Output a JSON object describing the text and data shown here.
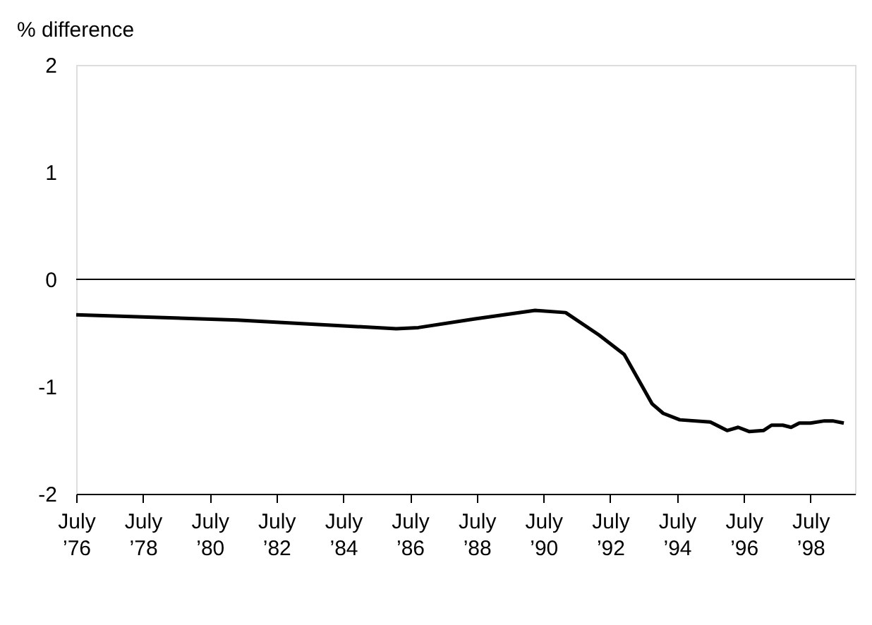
{
  "chart_data": {
    "type": "line",
    "ylabel": "% difference",
    "x": [
      "1976-07",
      "1981-05",
      "1986-02",
      "1986-10",
      "1988-06",
      "1990-04",
      "1991-03",
      "1992-03",
      "1992-12",
      "1993-10",
      "1994-02",
      "1994-08",
      "1995-07",
      "1996-01",
      "1996-05",
      "1996-09",
      "1997-02",
      "1997-05",
      "1997-09",
      "1997-12",
      "1998-03",
      "1998-07",
      "1998-12",
      "1999-03",
      "1999-07"
    ],
    "series": [
      {
        "color": "#000000",
        "values": [
          -0.33,
          -0.38,
          -0.46,
          -0.45,
          -0.37,
          -0.29,
          -0.31,
          -0.52,
          -0.7,
          -1.16,
          -1.25,
          -1.31,
          -1.33,
          -1.41,
          -1.38,
          -1.42,
          -1.41,
          -1.36,
          -1.36,
          -1.38,
          -1.34,
          -1.34,
          -1.32,
          -1.32,
          -1.34
        ]
      }
    ],
    "xlim": [
      "1976-07",
      "1999-11"
    ],
    "xticks": [
      {
        "value": "1976-07",
        "label": "July\n’76"
      },
      {
        "value": "1978-07",
        "label": "July\n’78"
      },
      {
        "value": "1980-07",
        "label": "July\n’80"
      },
      {
        "value": "1982-07",
        "label": "July\n’82"
      },
      {
        "value": "1984-07",
        "label": "July\n’84"
      },
      {
        "value": "1986-07",
        "label": "July\n’86"
      },
      {
        "value": "1988-07",
        "label": "July\n’88"
      },
      {
        "value": "1990-07",
        "label": "July\n’90"
      },
      {
        "value": "1992-07",
        "label": "July\n’92"
      },
      {
        "value": "1994-07",
        "label": "July\n’94"
      },
      {
        "value": "1996-07",
        "label": "July\n’96"
      },
      {
        "value": "1998-07",
        "label": "July\n’98"
      }
    ],
    "ylim": [
      -2,
      2
    ],
    "yticks": [
      -2,
      -1,
      0,
      1,
      2
    ],
    "ref_lines": [
      {
        "axis": "y",
        "value": 0,
        "color": "#000000"
      }
    ],
    "grid": false,
    "marker": "none",
    "line_style": "solid"
  }
}
